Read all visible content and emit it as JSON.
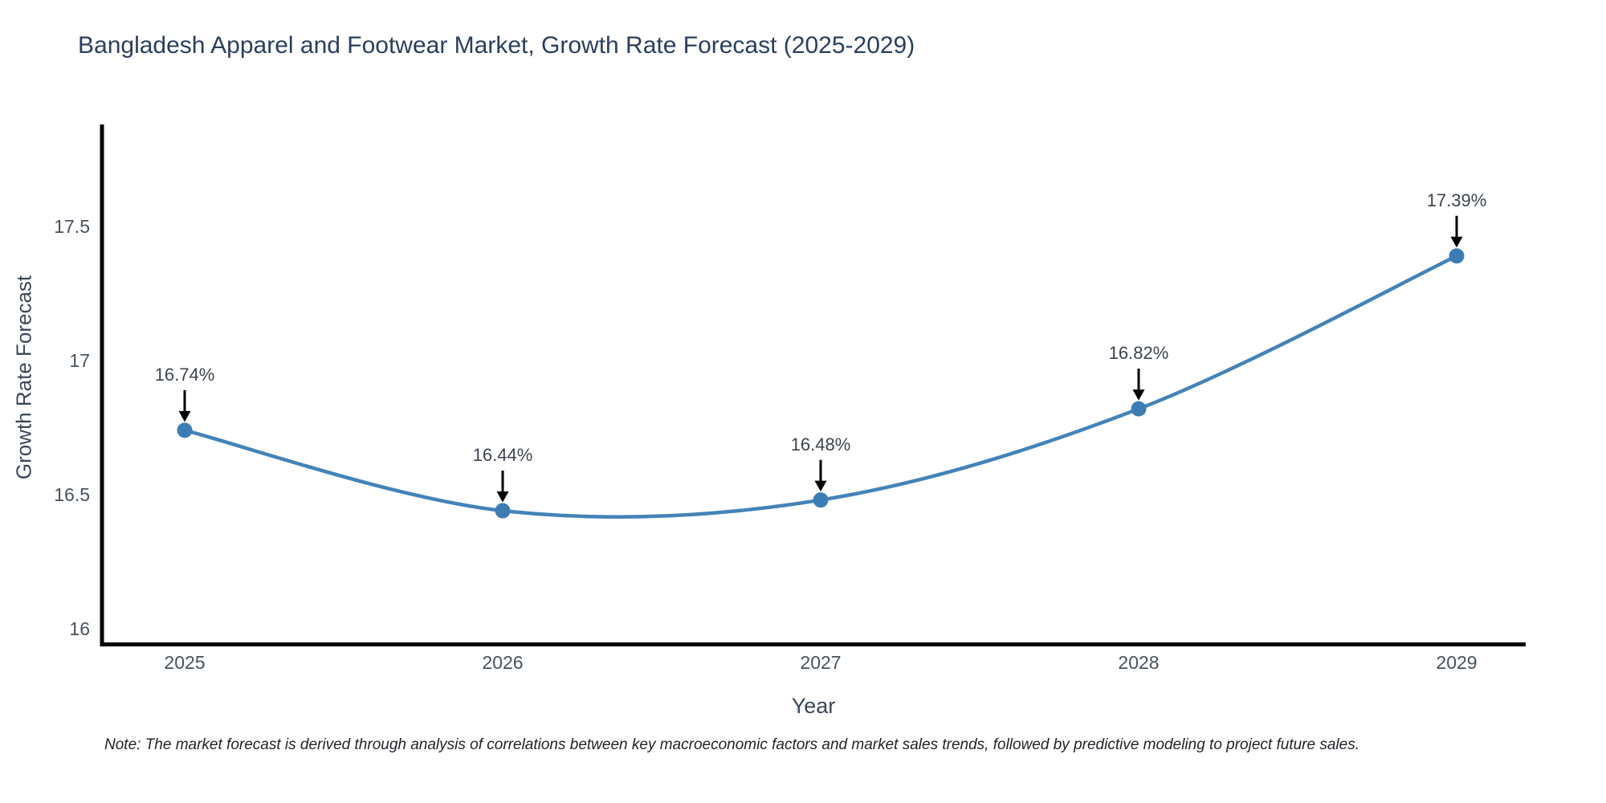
{
  "chart_data": {
    "type": "line",
    "title": "Bangladesh Apparel and Footwear Market, Growth Rate Forecast (2025-2029)",
    "xlabel": "Year",
    "ylabel": "Growth Rate Forecast",
    "x": [
      2025,
      2026,
      2027,
      2028,
      2029
    ],
    "y": [
      16.74,
      16.44,
      16.48,
      16.82,
      17.39
    ],
    "point_labels": [
      "16.74%",
      "16.44%",
      "16.48%",
      "16.82%",
      "17.39%"
    ],
    "xtick_labels": [
      "2025",
      "2026",
      "2027",
      "2028",
      "2029"
    ],
    "ytick_values": [
      16,
      16.5,
      17,
      17.5
    ],
    "ytick_labels": [
      "16",
      "16.5",
      "17",
      "17.5"
    ],
    "ylim": [
      15.93,
      17.88
    ],
    "line_shape": "spline",
    "grid": false,
    "legend_position": "none",
    "annotations": "each data point labeled with value and black down-arrow above marker"
  },
  "note": "Note: The market forecast is derived through analysis of correlations between key macroeconomic factors and market sales trends, followed by predictive modeling to project future sales.",
  "colors": {
    "line": "#4383b8",
    "marker": "#3d7cb3",
    "arrow": "#000000",
    "axis_line": "#000000",
    "title_text": "#2a3f5f",
    "tick_text": "#47525f",
    "background": "#ffffff"
  }
}
